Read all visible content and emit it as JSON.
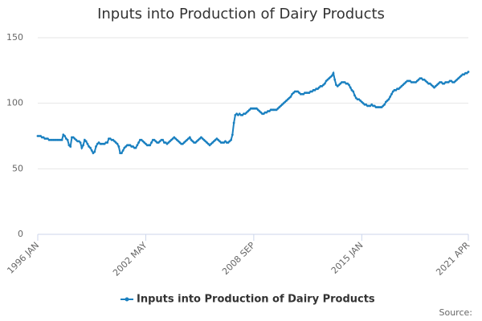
{
  "chart_data": {
    "type": "line",
    "title": "Inputs into Production of Dairy Products",
    "source": "Source:",
    "categories": [
      "1996 JAN",
      null,
      null,
      null,
      null,
      null,
      null,
      null,
      null,
      null,
      null,
      null,
      null,
      null,
      null,
      null,
      null,
      null,
      null,
      null,
      null,
      null,
      null,
      null,
      null,
      null,
      null,
      null,
      null,
      null,
      null,
      null,
      null,
      null,
      null,
      null,
      null,
      null,
      null,
      null,
      null,
      null,
      null,
      null,
      null,
      null,
      null,
      null,
      null,
      null,
      null,
      null,
      null,
      null,
      null,
      null,
      null,
      null,
      null,
      null,
      null,
      null,
      null,
      null,
      null,
      null,
      null,
      null,
      null,
      null,
      null,
      null,
      null,
      null,
      null,
      null,
      "2002 MAY",
      null,
      null,
      null,
      null,
      null,
      null,
      null,
      null,
      null,
      null,
      null,
      null,
      null,
      null,
      null,
      null,
      null,
      null,
      null,
      null,
      null,
      null,
      null,
      null,
      null,
      null,
      null,
      null,
      null,
      null,
      null,
      null,
      null,
      null,
      null,
      null,
      null,
      null,
      null,
      null,
      null,
      null,
      null,
      null,
      null,
      null,
      null,
      null,
      null,
      null,
      null,
      null,
      null,
      null,
      null,
      null,
      null,
      null,
      null,
      null,
      null,
      null,
      null,
      null,
      null,
      null,
      null,
      null,
      null,
      null,
      null,
      null,
      null,
      null,
      null,
      "2008 SEP",
      null,
      null,
      null,
      null,
      null,
      null,
      null,
      null,
      null,
      null,
      null,
      null,
      null,
      null,
      null,
      null,
      null,
      null,
      null,
      null,
      null,
      null,
      null,
      null,
      null,
      null,
      null,
      null,
      null,
      null,
      null,
      null,
      null,
      null,
      null,
      null,
      null,
      null,
      null,
      null,
      null,
      null,
      null,
      null,
      null,
      null,
      null,
      null,
      null,
      null,
      null,
      null,
      null,
      null,
      null,
      null,
      null,
      null,
      null,
      null,
      null,
      null,
      null,
      null,
      null,
      null,
      null,
      null,
      null,
      null,
      null,
      null,
      null,
      null,
      null,
      "2015 JAN",
      null,
      null,
      null,
      null,
      null,
      null,
      null,
      null,
      null,
      null,
      null,
      null,
      null,
      null,
      null,
      null,
      null,
      null,
      null,
      null,
      null,
      null,
      null,
      null,
      null,
      null,
      null,
      null,
      null,
      null,
      null,
      null,
      null,
      null,
      null,
      null,
      null,
      null,
      null,
      null,
      null,
      null,
      null,
      null,
      null,
      null,
      null,
      null,
      null,
      null,
      null,
      null,
      null,
      null,
      null,
      null,
      null,
      null,
      null,
      null,
      null,
      null,
      null,
      null,
      null,
      null,
      null,
      null,
      null,
      null,
      null,
      null,
      null,
      null,
      "2021 APR"
    ],
    "series": [
      {
        "name": "Inputs into Production of Dairy Products",
        "color": "#1a80c0",
        "values": [
          75,
          75,
          75,
          74,
          74,
          73,
          73,
          73,
          72,
          72,
          72,
          72,
          72,
          72,
          72,
          72,
          72,
          72,
          76,
          75,
          73,
          72,
          68,
          67,
          74,
          74,
          73,
          72,
          71,
          71,
          70,
          66,
          68,
          72,
          71,
          69,
          67,
          66,
          64,
          62,
          63,
          67,
          69,
          70,
          69,
          69,
          69,
          69,
          70,
          70,
          73,
          73,
          72,
          72,
          71,
          70,
          69,
          67,
          62,
          62,
          64,
          66,
          67,
          68,
          68,
          68,
          67,
          67,
          66,
          66,
          68,
          70,
          72,
          72,
          71,
          70,
          69,
          68,
          68,
          68,
          70,
          72,
          72,
          71,
          70,
          70,
          71,
          72,
          72,
          70,
          70,
          69,
          70,
          71,
          72,
          73,
          74,
          73,
          72,
          71,
          70,
          69,
          69,
          70,
          71,
          72,
          73,
          74,
          72,
          71,
          70,
          70,
          71,
          72,
          73,
          74,
          73,
          72,
          71,
          70,
          69,
          68,
          69,
          70,
          71,
          72,
          73,
          72,
          71,
          70,
          70,
          70,
          71,
          70,
          70,
          71,
          72,
          76,
          85,
          91,
          92,
          91,
          92,
          91,
          91,
          92,
          92,
          93,
          94,
          95,
          96,
          96,
          96,
          96,
          96,
          95,
          94,
          93,
          92,
          92,
          93,
          93,
          94,
          94,
          95,
          95,
          95,
          95,
          95,
          96,
          97,
          98,
          99,
          100,
          101,
          102,
          103,
          104,
          105,
          107,
          108,
          109,
          109,
          109,
          108,
          107,
          107,
          107,
          108,
          108,
          108,
          108,
          109,
          109,
          110,
          110,
          111,
          111,
          112,
          113,
          113,
          114,
          115,
          117,
          118,
          119,
          120,
          121,
          123,
          118,
          114,
          113,
          114,
          115,
          116,
          116,
          116,
          115,
          115,
          114,
          112,
          110,
          109,
          106,
          104,
          103,
          103,
          102,
          101,
          100,
          99,
          99,
          98,
          98,
          98,
          99,
          98,
          98,
          97,
          97,
          97,
          97,
          97,
          98,
          99,
          101,
          102,
          103,
          105,
          107,
          109,
          110,
          110,
          111,
          111,
          112,
          113,
          114,
          115,
          116,
          117,
          117,
          117,
          116,
          116,
          116,
          116,
          117,
          118,
          119,
          119,
          118,
          118,
          117,
          116,
          115,
          115,
          114,
          113,
          112,
          113,
          114,
          115,
          116,
          116,
          115,
          115,
          116,
          116,
          116,
          117,
          117,
          116,
          116,
          117,
          118,
          119,
          120,
          121,
          122,
          122,
          123,
          123,
          124
        ]
      }
    ],
    "ylim": [
      0,
      150
    ],
    "yticks": [
      0,
      50,
      100,
      150
    ],
    "grid": true
  }
}
